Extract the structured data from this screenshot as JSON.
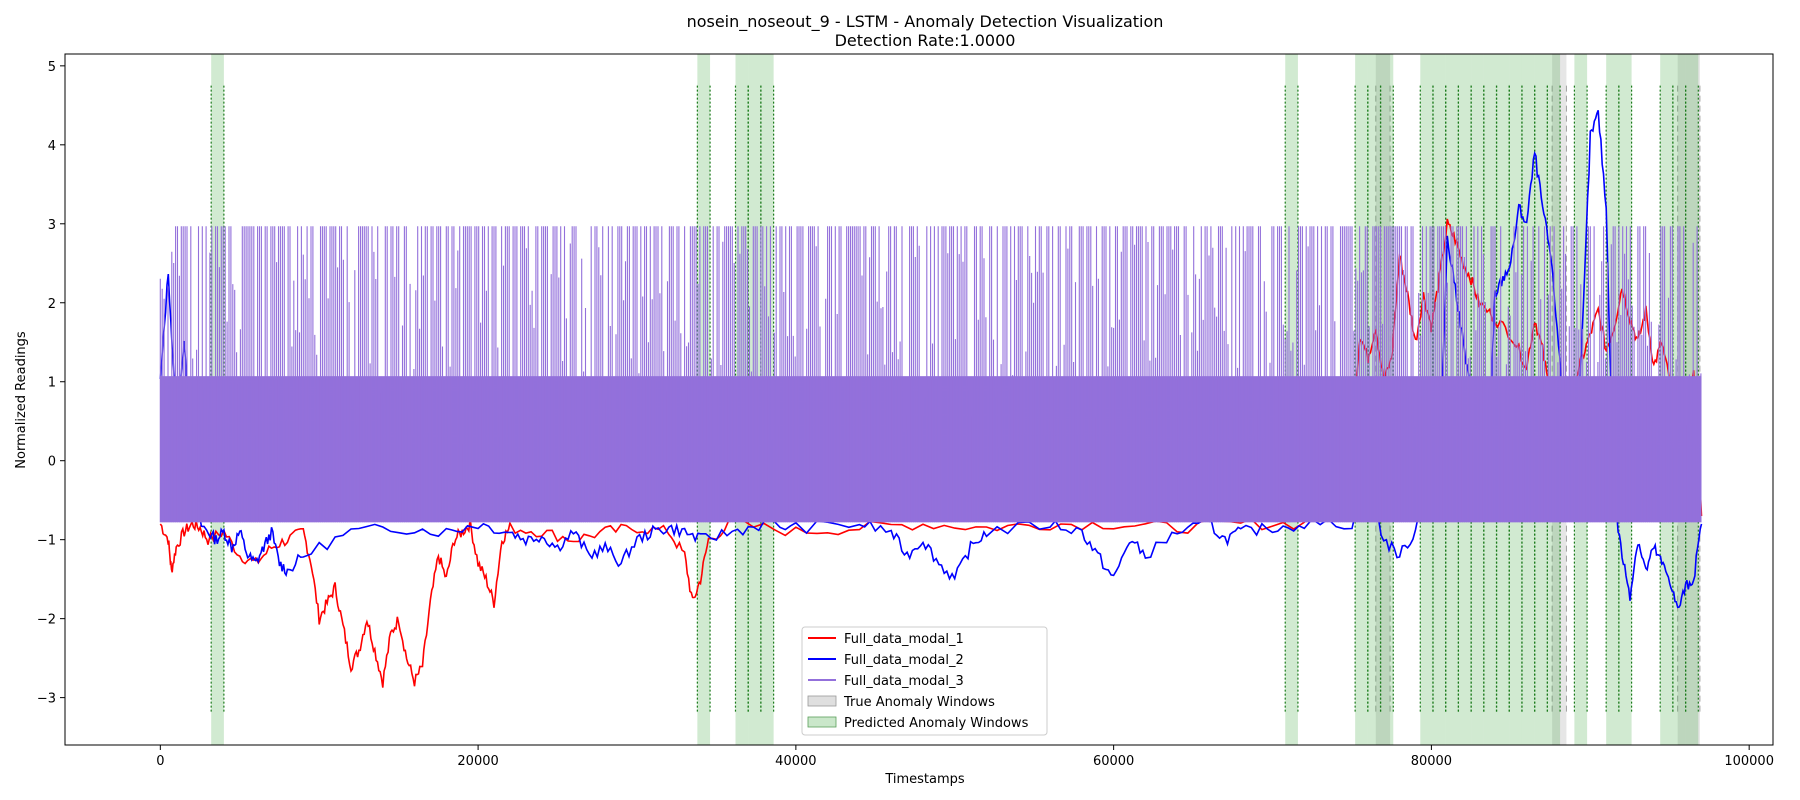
{
  "chart_data": {
    "type": "line",
    "title": "nosein_noseout_9 - LSTM - Anomaly Detection Visualization",
    "subtitle": "Detection Rate:1.0000",
    "xlabel": "Timestamps",
    "ylabel": "Normalized Readings",
    "xlim": [
      -6000,
      101500
    ],
    "ylim": [
      -3.6,
      5.15
    ],
    "x_ticks": [
      0,
      20000,
      40000,
      60000,
      80000,
      100000
    ],
    "x_tick_labels": [
      "0",
      "20000",
      "40000",
      "60000",
      "80000",
      "100000"
    ],
    "y_ticks": [
      -3,
      -2,
      -1,
      0,
      1,
      2,
      3,
      4,
      5
    ],
    "y_tick_labels": [
      "−3",
      "−2",
      "−1",
      "0",
      "1",
      "2",
      "3",
      "4",
      "5"
    ],
    "grid": false,
    "legend_position": "lower-center",
    "series": [
      {
        "name": "Full_data_modal_1",
        "color": "#ff0000",
        "x": [
          0,
          500,
          700,
          1000,
          1500,
          2000,
          2500,
          3000,
          4000,
          5000,
          6000,
          7000,
          8000,
          9000,
          9500,
          10000,
          10500,
          11000,
          11500,
          12000,
          12500,
          13000,
          13500,
          14000,
          14500,
          15000,
          15500,
          16000,
          16500,
          17000,
          17500,
          18000,
          18500,
          19000,
          19500,
          20000,
          20500,
          21000,
          21500,
          22000,
          24000,
          26000,
          28000,
          30000,
          32000,
          33000,
          33500,
          34000,
          34500,
          36000,
          40000,
          44000,
          48000,
          52000,
          56000,
          60000,
          64000,
          68000,
          72000,
          75000,
          75500,
          76000,
          76500,
          77000,
          77500,
          78000,
          78500,
          79000,
          79500,
          80000,
          80500,
          81000,
          81500,
          82000,
          82500,
          83000,
          84000,
          85000,
          86000,
          86500,
          87000,
          87500,
          88000,
          88500,
          89000,
          89500,
          90000,
          90500,
          91000,
          91500,
          92000,
          92500,
          93000,
          93500,
          94000,
          94500,
          95000,
          95500,
          96000,
          96500,
          97000
        ],
        "y": [
          -0.8,
          -1.0,
          -1.4,
          -1.1,
          -0.9,
          -0.8,
          -0.85,
          -1.0,
          -0.9,
          -1.2,
          -1.3,
          -1.1,
          -1.0,
          -0.9,
          -1.3,
          -2.0,
          -1.8,
          -1.6,
          -2.1,
          -2.6,
          -2.4,
          -2.0,
          -2.4,
          -2.8,
          -2.2,
          -2.0,
          -2.5,
          -2.8,
          -2.6,
          -1.8,
          -1.2,
          -1.5,
          -1.0,
          -0.9,
          -0.8,
          -1.3,
          -1.5,
          -1.8,
          -1.0,
          -0.85,
          -0.9,
          -1.0,
          -0.9,
          -0.85,
          -0.9,
          -1.2,
          -1.8,
          -1.5,
          -1.0,
          -0.8,
          -0.9,
          -0.85,
          -0.8,
          -0.85,
          -0.8,
          -0.8,
          -0.85,
          -0.8,
          -0.8,
          0.3,
          1.6,
          1.3,
          1.7,
          1.0,
          1.3,
          2.6,
          2.1,
          1.5,
          2.1,
          1.7,
          2.3,
          3.0,
          2.8,
          2.5,
          2.3,
          2.0,
          1.8,
          1.6,
          1.2,
          1.8,
          1.4,
          0.8,
          -0.1,
          0.5,
          1.0,
          1.3,
          1.6,
          1.9,
          1.4,
          1.7,
          2.2,
          1.8,
          1.5,
          1.9,
          1.2,
          1.5,
          1.0,
          0.6,
          0.9,
          1.1,
          -0.7
        ]
      },
      {
        "name": "Full_data_modal_2",
        "color": "#0000ff",
        "x": [
          0,
          500,
          1000,
          1500,
          2000,
          2500,
          3000,
          3500,
          4000,
          4500,
          5000,
          5500,
          6000,
          6500,
          7000,
          7500,
          8000,
          9000,
          12000,
          15000,
          18000,
          20000,
          22000,
          23000,
          24000,
          25000,
          26000,
          27000,
          28000,
          29000,
          30000,
          31000,
          32000,
          33000,
          34000,
          36000,
          38000,
          40000,
          44000,
          46000,
          47000,
          48000,
          49000,
          50000,
          51000,
          52000,
          56000,
          58000,
          59000,
          60000,
          61000,
          62000,
          64000,
          66000,
          67000,
          68000,
          70000,
          72000,
          75000,
          76000,
          77000,
          78000,
          79000,
          80000,
          80500,
          81000,
          81500,
          82000,
          82500,
          83000,
          83500,
          84000,
          84500,
          85000,
          85500,
          86000,
          86500,
          87000,
          87500,
          88000,
          88500,
          89000,
          89500,
          90000,
          90500,
          91000,
          91500,
          92000,
          92500,
          93000,
          93500,
          94000,
          94500,
          95000,
          95500,
          96000,
          96500,
          97000
        ],
        "y": [
          1.0,
          2.4,
          0.5,
          1.5,
          -0.3,
          -0.8,
          -0.9,
          -1.0,
          -0.9,
          -1.1,
          -0.9,
          -1.2,
          -1.3,
          -1.1,
          -0.9,
          -1.3,
          -1.4,
          -1.2,
          -0.9,
          -0.85,
          -0.9,
          -0.8,
          -0.9,
          -1.0,
          -0.95,
          -1.1,
          -0.9,
          -1.2,
          -1.1,
          -1.3,
          -1.0,
          -0.9,
          -0.85,
          -0.9,
          -1.0,
          -0.9,
          -0.8,
          -0.85,
          -0.8,
          -0.9,
          -1.2,
          -1.0,
          -1.3,
          -1.5,
          -1.1,
          -0.9,
          -0.8,
          -0.9,
          -1.2,
          -1.5,
          -1.0,
          -1.2,
          -0.9,
          -0.8,
          -1.0,
          -0.9,
          -0.85,
          -0.8,
          -0.8,
          -0.3,
          -1.0,
          -1.2,
          -0.9,
          0.3,
          0.0,
          2.8,
          2.2,
          1.5,
          0.8,
          0.2,
          -0.4,
          2.1,
          2.3,
          2.5,
          3.2,
          3.0,
          3.9,
          3.2,
          2.6,
          1.5,
          0.0,
          -0.5,
          1.6,
          4.1,
          4.4,
          3.2,
          -0.5,
          -1.2,
          -1.7,
          -1.0,
          -1.4,
          -1.1,
          -1.3,
          -1.5,
          -1.9,
          -1.6,
          -1.5,
          -0.8
        ]
      },
      {
        "name": "Full_data_modal_3",
        "color": "#9370db",
        "low": -0.78,
        "high": 2.97,
        "x_start": 0,
        "x_end": 97000
      }
    ],
    "true_anomaly_windows": [
      [
        76500,
        77400
      ],
      [
        87600,
        88500
      ],
      [
        95500,
        96900
      ]
    ],
    "predicted_anomaly_windows": [
      [
        3200,
        4000
      ],
      [
        33800,
        34600
      ],
      [
        36200,
        37000
      ],
      [
        37000,
        37800
      ],
      [
        37800,
        38600
      ],
      [
        70800,
        71600
      ],
      [
        75200,
        76000
      ],
      [
        76000,
        76800
      ],
      [
        76800,
        77600
      ],
      [
        79300,
        80100
      ],
      [
        80100,
        80900
      ],
      [
        80900,
        81700
      ],
      [
        81700,
        82500
      ],
      [
        82500,
        83300
      ],
      [
        83300,
        84100
      ],
      [
        84100,
        84900
      ],
      [
        84900,
        85700
      ],
      [
        85700,
        86500
      ],
      [
        86500,
        87300
      ],
      [
        87300,
        88100
      ],
      [
        89000,
        89800
      ],
      [
        91000,
        91800
      ],
      [
        91800,
        92600
      ],
      [
        94400,
        95200
      ],
      [
        95200,
        96000
      ],
      [
        96000,
        96800
      ]
    ],
    "legend": [
      "Full_data_modal_1",
      "Full_data_modal_2",
      "Full_data_modal_3",
      "True Anomaly Windows",
      "Predicted Anomaly Windows"
    ]
  }
}
